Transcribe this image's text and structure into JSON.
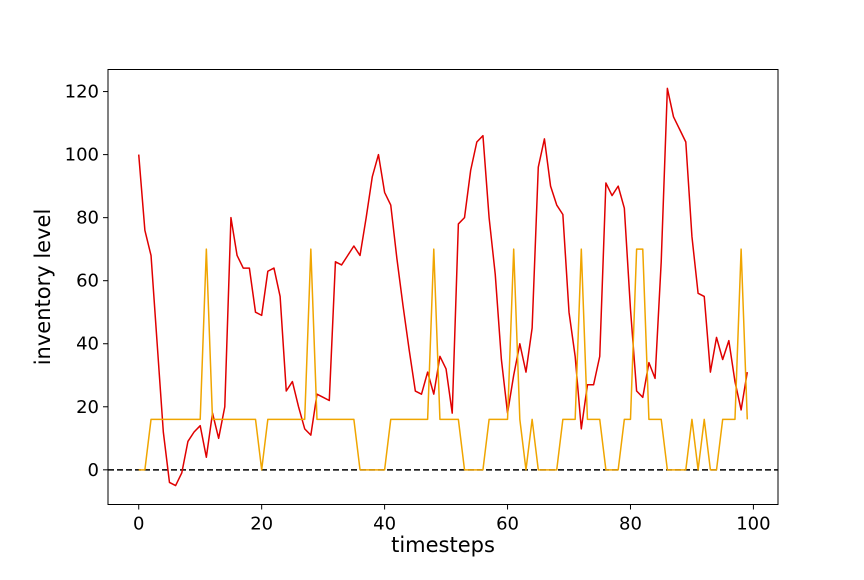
{
  "chart_data": {
    "type": "line",
    "title": "",
    "xlabel": "timesteps",
    "ylabel": "inventory level",
    "xlim": [
      -5,
      104
    ],
    "ylim": [
      -11,
      127
    ],
    "xticks": [
      0,
      20,
      40,
      60,
      80,
      100
    ],
    "yticks": [
      0,
      20,
      40,
      60,
      80,
      100,
      120
    ],
    "grid": false,
    "legend": "none",
    "reference_line": {
      "y": 0,
      "style": "dashed",
      "color": "#000000"
    },
    "series": [
      {
        "color": "#e00000",
        "x": [
          0,
          1,
          2,
          3,
          4,
          5,
          6,
          7,
          8,
          9,
          10,
          11,
          12,
          13,
          14,
          15,
          16,
          17,
          18,
          19,
          20,
          21,
          22,
          23,
          24,
          25,
          26,
          27,
          28,
          29,
          30,
          31,
          32,
          33,
          34,
          35,
          36,
          37,
          38,
          39,
          40,
          41,
          42,
          43,
          44,
          45,
          46,
          47,
          48,
          49,
          50,
          51,
          52,
          53,
          54,
          55,
          56,
          57,
          58,
          59,
          60,
          61,
          62,
          63,
          64,
          65,
          66,
          67,
          68,
          69,
          70,
          71,
          72,
          73,
          74,
          75,
          76,
          77,
          78,
          79,
          80,
          81,
          82,
          83,
          84,
          85,
          86,
          87,
          88,
          89,
          90,
          91,
          92,
          93,
          94,
          95,
          96,
          97,
          98,
          99
        ],
        "y": [
          100,
          76,
          68,
          40,
          12,
          -4,
          -5,
          -1,
          9,
          12,
          14,
          4,
          18,
          10,
          20,
          80,
          68,
          64,
          64,
          50,
          49,
          63,
          64,
          55,
          25,
          28,
          20,
          13,
          11,
          24,
          23,
          22,
          66,
          65,
          68,
          71,
          68,
          80,
          93,
          100,
          88,
          84,
          67,
          52,
          38,
          25,
          24,
          31,
          24,
          36,
          32,
          18,
          78,
          80,
          95,
          104,
          106,
          80,
          62,
          35,
          18,
          30,
          40,
          31,
          45,
          96,
          105,
          90,
          84,
          81,
          50,
          36,
          13,
          27,
          27,
          36,
          91,
          87,
          90,
          83,
          51,
          25,
          23,
          34,
          29,
          66,
          121,
          112,
          108,
          104,
          74,
          56,
          55,
          31,
          42,
          35,
          41,
          28,
          19,
          31
        ]
      },
      {
        "color": "#f0a500",
        "x": [
          0,
          1,
          2,
          3,
          4,
          5,
          6,
          7,
          8,
          9,
          10,
          11,
          12,
          13,
          14,
          15,
          16,
          17,
          18,
          19,
          20,
          21,
          22,
          23,
          24,
          25,
          26,
          27,
          28,
          29,
          30,
          31,
          32,
          33,
          34,
          35,
          36,
          37,
          38,
          39,
          40,
          41,
          42,
          43,
          44,
          45,
          46,
          47,
          48,
          49,
          50,
          51,
          52,
          53,
          54,
          55,
          56,
          57,
          58,
          59,
          60,
          61,
          62,
          63,
          64,
          65,
          66,
          67,
          68,
          69,
          70,
          71,
          72,
          73,
          74,
          75,
          76,
          77,
          78,
          79,
          80,
          81,
          82,
          83,
          84,
          85,
          86,
          87,
          88,
          89,
          90,
          91,
          92,
          93,
          94,
          95,
          96,
          97,
          98,
          99
        ],
        "y": [
          0,
          0,
          16,
          16,
          16,
          16,
          16,
          16,
          16,
          16,
          16,
          70,
          16,
          16,
          16,
          16,
          16,
          16,
          16,
          16,
          0,
          16,
          16,
          16,
          16,
          16,
          16,
          16,
          70,
          16,
          16,
          16,
          16,
          16,
          16,
          16,
          0,
          0,
          0,
          0,
          0,
          16,
          16,
          16,
          16,
          16,
          16,
          16,
          70,
          16,
          16,
          16,
          16,
          0,
          0,
          0,
          0,
          16,
          16,
          16,
          16,
          70,
          16,
          0,
          16,
          0,
          0,
          0,
          0,
          16,
          16,
          16,
          70,
          16,
          16,
          16,
          0,
          0,
          0,
          16,
          16,
          70,
          70,
          16,
          16,
          16,
          0,
          0,
          0,
          0,
          16,
          0,
          16,
          0,
          0,
          16,
          16,
          16,
          70,
          16
        ]
      }
    ]
  }
}
